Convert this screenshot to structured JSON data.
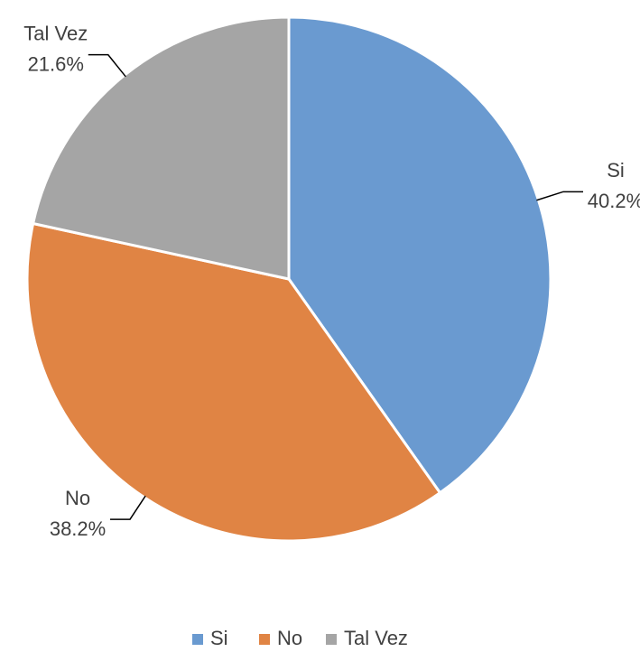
{
  "chart_data": {
    "type": "pie",
    "categories": [
      "Si",
      "No",
      "Tal Vez"
    ],
    "values": [
      40.2,
      38.2,
      21.6
    ],
    "value_labels": [
      "40.2%",
      "38.2%",
      "21.6%"
    ],
    "colors": [
      "#6a9ad0",
      "#e08444",
      "#a5a5a5"
    ],
    "legend": "bottom"
  }
}
